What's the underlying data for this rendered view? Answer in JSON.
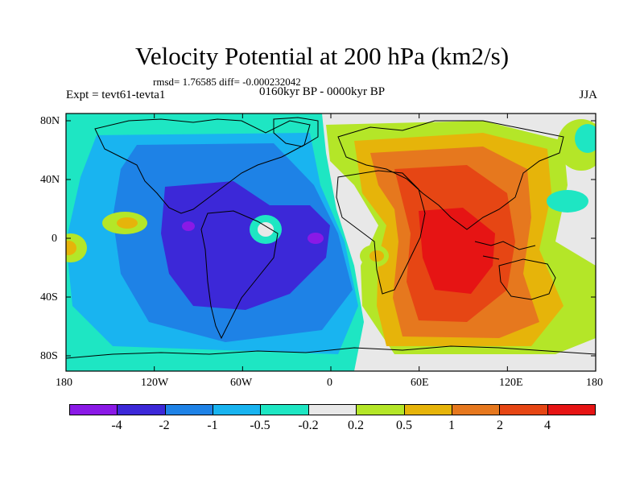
{
  "title": "Velocity Potential at 200 hPa (km2/s)",
  "stats": "rmsd= 1.76585 diff= -0.000232042",
  "expt": "Expt = tevt61-tevta1",
  "period": "0160kyr BP - 0000kyr BP",
  "season": "JJA",
  "x_ticks": [
    "180",
    "120W",
    "60W",
    "0",
    "60E",
    "120E",
    "180"
  ],
  "y_ticks": [
    "80N",
    "40N",
    "0",
    "40S",
    "80S"
  ],
  "colorbar": {
    "labels": [
      "-4",
      "-2",
      "-1",
      "-0.5",
      "-0.2",
      "0.2",
      "0.5",
      "1",
      "2",
      "4"
    ],
    "colors": [
      "#8a19e6",
      "#3c28d8",
      "#1e82e6",
      "#19b4f0",
      "#1ee6c3",
      "#e8e8e8",
      "#b4e628",
      "#e6b40a",
      "#e6781e",
      "#e64614",
      "#e61414"
    ]
  }
}
